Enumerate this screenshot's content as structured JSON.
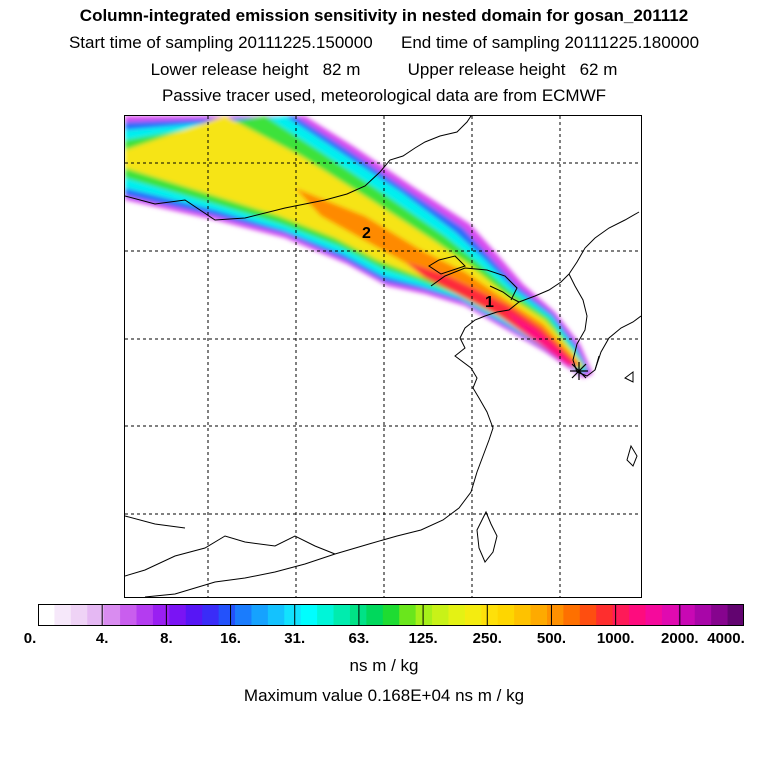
{
  "header": {
    "title": "Column-integrated emission sensitivity in nested domain for gosan_201112",
    "sampling": "Start time of sampling 20111225.150000      End time of sampling 20111225.180000",
    "release": "Lower release height   82 m          Upper release height   62 m",
    "tracer": "Passive tracer used, meteorological data are from ECMWF"
  },
  "map": {
    "markers": [
      {
        "label": "1"
      },
      {
        "label": "2"
      }
    ],
    "receptor_symbol": "star-marker"
  },
  "colorbar": {
    "tick_labels": [
      "0.",
      "4.",
      "8.",
      "16.",
      "31.",
      "63.",
      "125.",
      "250.",
      "500.",
      "1000.",
      "2000.",
      "4000."
    ],
    "colors": [
      "#ffffff",
      "#f6e8fa",
      "#efd3f6",
      "#e5b8f3",
      "#d98cf0",
      "#c95eee",
      "#b43cf0",
      "#9a1ff2",
      "#7a14f4",
      "#5716f5",
      "#3a2cf8",
      "#2352fb",
      "#1a7cfd",
      "#16a2fe",
      "#14c2fe",
      "#12e2fe",
      "#00fefe",
      "#00f5d8",
      "#00ecae",
      "#00e286",
      "#00d85c",
      "#1edc32",
      "#6ae61c",
      "#a6f01a",
      "#c8f218",
      "#e4f214",
      "#f4ec10",
      "#fee00a",
      "#fed600",
      "#fec200",
      "#feaa00",
      "#fe9000",
      "#fe7000",
      "#fe4e10",
      "#fe2e2e",
      "#fe1a58",
      "#fe0c7e",
      "#f50a9c",
      "#e00ab0",
      "#c808b4",
      "#a806a8",
      "#86048e",
      "#620470"
    ]
  },
  "footer": {
    "unit": "ns m / kg",
    "max_value": "Maximum value  0.168E+04 ns m / kg"
  }
}
